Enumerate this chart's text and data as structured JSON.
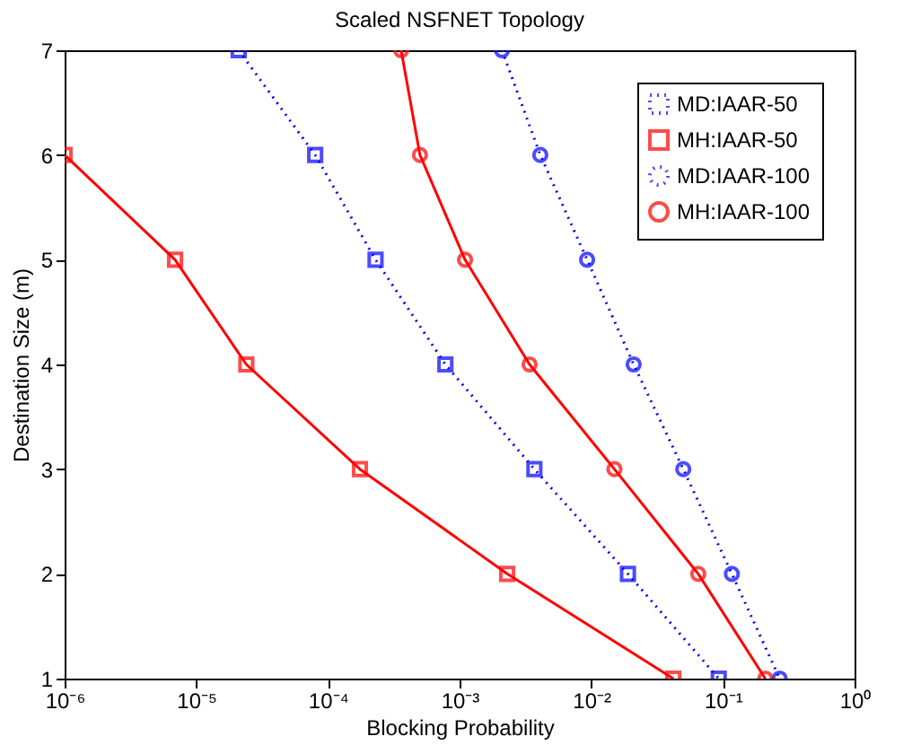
{
  "chart_data": {
    "type": "line",
    "title": "Scaled NSFNET Topology",
    "xlabel": "Blocking Probability",
    "ylabel": "Destination Size (m)",
    "x": [
      7,
      6,
      5,
      4,
      3,
      2,
      1
    ],
    "series": [
      {
        "name": "MD:IAAR-50",
        "color": "#0000ff",
        "marker": "square",
        "line_style": "dotted",
        "values": [
          2.1e-05,
          8e-05,
          0.00023,
          0.00078,
          0.0037,
          0.019,
          0.093
        ]
      },
      {
        "name": "MH:IAAR-50",
        "color": "#ff0000",
        "marker": "square",
        "line_style": "solid",
        "values": [
          null,
          1e-06,
          6.9e-06,
          2.4e-05,
          0.000175,
          0.0023,
          0.042
        ]
      },
      {
        "name": "MD:IAAR-100",
        "color": "#0000ff",
        "marker": "circle",
        "line_style": "dotted",
        "values": [
          0.0021,
          0.0041,
          0.0093,
          0.021,
          0.05,
          0.117,
          0.27
        ]
      },
      {
        "name": "MH:IAAR-100",
        "color": "#ff0000",
        "marker": "circle",
        "line_style": "solid",
        "values": [
          0.00036,
          0.0005,
          0.0011,
          0.0034,
          0.015,
          0.065,
          0.21
        ]
      }
    ],
    "orientation": "horizontal",
    "log": "x",
    "xlim": [
      1e-06,
      1
    ],
    "xticks": [
      {
        "value": 1e-06,
        "label": "10⁻⁶"
      },
      {
        "value": 1e-05,
        "label": "10⁻⁵"
      },
      {
        "value": 0.0001,
        "label": "10⁻⁴"
      },
      {
        "value": 0.001,
        "label": "10⁻³"
      },
      {
        "value": 0.01,
        "label": "10⁻²"
      },
      {
        "value": 0.1,
        "label": "10⁻¹"
      },
      {
        "value": 1,
        "label": "10⁰"
      }
    ],
    "ylim": [
      1,
      7
    ],
    "yticks": [
      1,
      2,
      3,
      4,
      5,
      6,
      7
    ],
    "grid": false,
    "legend": "top right"
  }
}
